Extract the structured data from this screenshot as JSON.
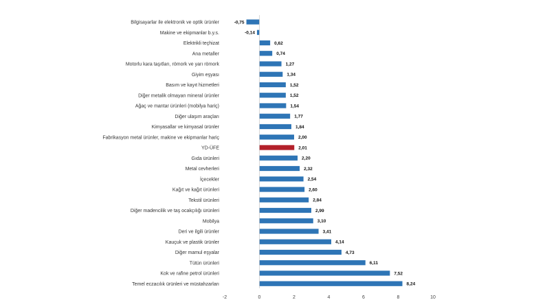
{
  "chart_data": {
    "type": "bar",
    "orientation": "horizontal",
    "categories": [
      "Bilgisayarlar ile elektronik ve optik ürünler",
      "Makine ve ekipmanlar b.y.s.",
      "Elektrikli teçhizat",
      "Ana metaller",
      "Motorlu kara taşıtları, römork ve yarı römork",
      "Giyim eşyası",
      "Basım ve kayıt hizmetleri",
      "Diğer metalik olmayan mineral ürünler",
      "Ağaç ve mantar ürünleri (mobilya hariç)",
      "Diğer ulaşım araçları",
      "Kimyasallar ve kimyasal ürünler",
      "Fabrikasyon metal ürünler, makine ve ekipmanlar hariç",
      "YD-ÜFE",
      "Gıda ürünleri",
      "Metal cevherleri",
      "İçecekler",
      "Kağıt ve kağıt ürünleri",
      "Tekstil ürünleri",
      "Diğer madencilik ve taş ocakçılığı ürünleri",
      "Mobilya",
      "Deri ve ilgili ürünler",
      "Kauçuk ve plastik ürünler",
      "Diğer mamul eşyalar",
      "Tütün ürünleri",
      "Kok ve rafine petrol ürünleri",
      "Temel eczacılık ürünleri ve müstahzarları"
    ],
    "values": [
      -0.75,
      -0.14,
      0.62,
      0.74,
      1.27,
      1.34,
      1.52,
      1.52,
      1.54,
      1.77,
      1.84,
      2.0,
      2.01,
      2.2,
      2.32,
      2.54,
      2.6,
      2.84,
      2.99,
      3.1,
      3.41,
      4.14,
      4.73,
      6.11,
      7.52,
      8.24
    ],
    "value_labels": [
      "-0,75",
      "-0,14",
      "0,62",
      "0,74",
      "1,27",
      "1,34",
      "1,52",
      "1,52",
      "1,54",
      "1,77",
      "1,84",
      "2,00",
      "2,01",
      "2,20",
      "2,32",
      "2,54",
      "2,60",
      "2,84",
      "2,99",
      "3,10",
      "3,41",
      "4,14",
      "4,73",
      "6,11",
      "7,52",
      "8,24"
    ],
    "highlight_category": "YD-ÜFE",
    "xlim": [
      -2,
      10
    ],
    "xticks": [
      -2,
      0,
      2,
      4,
      6,
      8,
      10
    ],
    "xtick_labels": [
      "-2",
      "0",
      "2",
      "4",
      "6",
      "8",
      "10"
    ],
    "grid": false,
    "legend": "none",
    "title": "",
    "xlabel": "",
    "ylabel": "",
    "colors": {
      "bar": "#2e75b6",
      "highlight": "#b3202a",
      "axis": "#bfbfbf"
    }
  }
}
